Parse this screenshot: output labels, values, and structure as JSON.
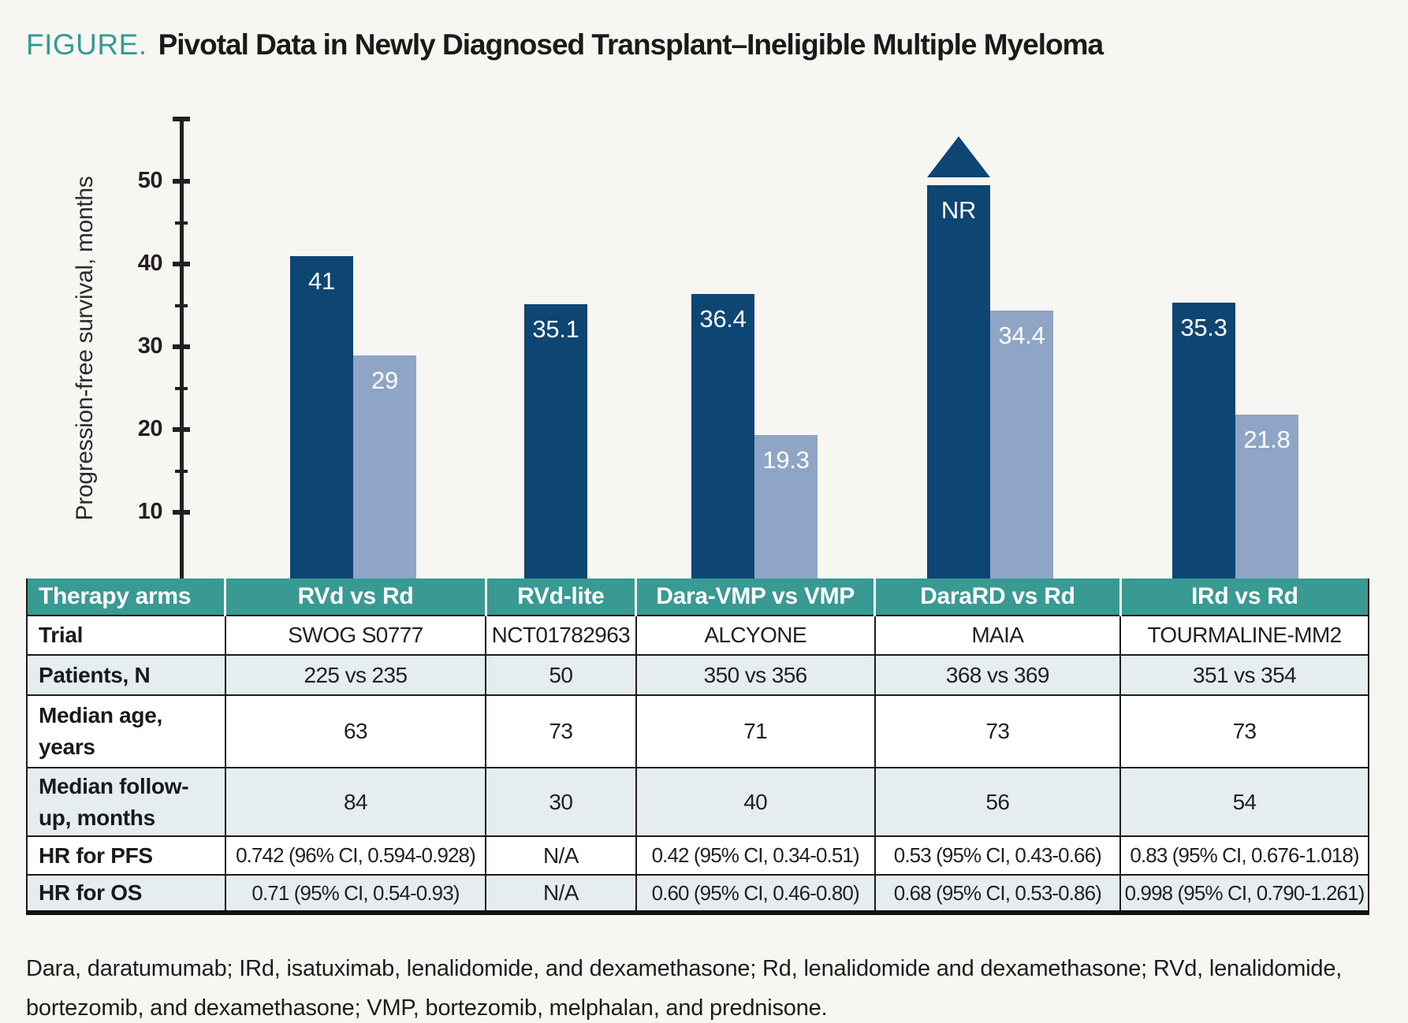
{
  "figure": {
    "label": "FIGURE.",
    "title": "Pivotal Data in Newly Diagnosed Transplant–Ineligible Multiple Myeloma"
  },
  "chart_data": {
    "type": "bar",
    "title": "Pivotal Data in Newly Diagnosed Transplant–Ineligible Multiple Myeloma",
    "xlabel": "",
    "ylabel": "Progression-free survival, months",
    "ylim": [
      0,
      58
    ],
    "yticks": [
      10,
      20,
      30,
      40,
      50
    ],
    "yticks_minor": [
      15,
      25,
      35,
      45
    ],
    "grid": false,
    "legend": "none",
    "colors": {
      "dark": "#0d4573",
      "light": "#8fa5c5"
    },
    "groups": [
      {
        "arm": "RVd vs Rd",
        "bars": [
          {
            "label": "41",
            "value": 41,
            "color": "dark"
          },
          {
            "label": "29",
            "value": 29,
            "color": "light"
          }
        ]
      },
      {
        "arm": "RVd-lite",
        "bars": [
          {
            "label": "35.1",
            "value": 35.1,
            "color": "dark"
          }
        ]
      },
      {
        "arm": "Dara-VMP vs VMP",
        "bars": [
          {
            "label": "36.4",
            "value": 36.4,
            "color": "dark"
          },
          {
            "label": "19.3",
            "value": 19.3,
            "color": "light"
          }
        ]
      },
      {
        "arm": "DaraRD vs Rd",
        "bars": [
          {
            "label": "NR",
            "value": 49.5,
            "color": "dark",
            "arrow": true,
            "note": "not reached"
          },
          {
            "label": "34.4",
            "value": 34.4,
            "color": "light"
          }
        ]
      },
      {
        "arm": "IRd vs Rd",
        "bars": [
          {
            "label": "35.3",
            "value": 35.3,
            "color": "dark"
          },
          {
            "label": "21.8",
            "value": 21.8,
            "color": "light"
          }
        ]
      }
    ]
  },
  "table": {
    "header": [
      "Therapy arms",
      "RVd vs Rd",
      "RVd-lite",
      "Dara-VMP vs VMP",
      "DaraRD vs Rd",
      "IRd vs Rd"
    ],
    "rows": [
      {
        "label": "Trial",
        "values": [
          "SWOG S0777",
          "NCT01782963",
          "ALCYONE",
          "MAIA",
          "TOURMALINE-MM2"
        ]
      },
      {
        "label": "Patients, N",
        "values": [
          "225 vs 235",
          "50",
          "350 vs 356",
          "368 vs 369",
          "351 vs 354"
        ]
      },
      {
        "label": "Median age, years",
        "values": [
          "63",
          "73",
          "71",
          "73",
          "73"
        ]
      },
      {
        "label": "Median follow-up, months",
        "values": [
          "84",
          "30",
          "40",
          "56",
          "54"
        ]
      },
      {
        "label": "HR for PFS",
        "values": [
          "0.742 (96% CI, 0.594-0.928)",
          "N/A",
          "0.42 (95% CI, 0.34-0.51)",
          "0.53 (95% CI, 0.43-0.66)",
          "0.83 (95% CI, 0.676-1.018)"
        ]
      },
      {
        "label": "HR for OS",
        "values": [
          "0.71 (95% CI, 0.54-0.93)",
          "N/A",
          "0.60 (95% CI, 0.46-0.80)",
          "0.68 (95% CI, 0.53-0.86)",
          "0.998 (95% CI, 0.790-1.261)"
        ]
      }
    ]
  },
  "footnote": "Dara, daratumumab; IRd, isatuximab, lenalidomide, and dexamethasone; Rd, lenalidomide and dexamethasone; RVd, lenalidomide, bortezomib, and dexamethasone; VMP, bortezomib, melphalan, and prednisone.",
  "colors": {
    "teal": "#389a93",
    "navy_bar": "#0d4573",
    "light_blue_bar": "#8fa5c5",
    "shaded_row": "#e5edf1",
    "background": "#f7f6f2"
  }
}
